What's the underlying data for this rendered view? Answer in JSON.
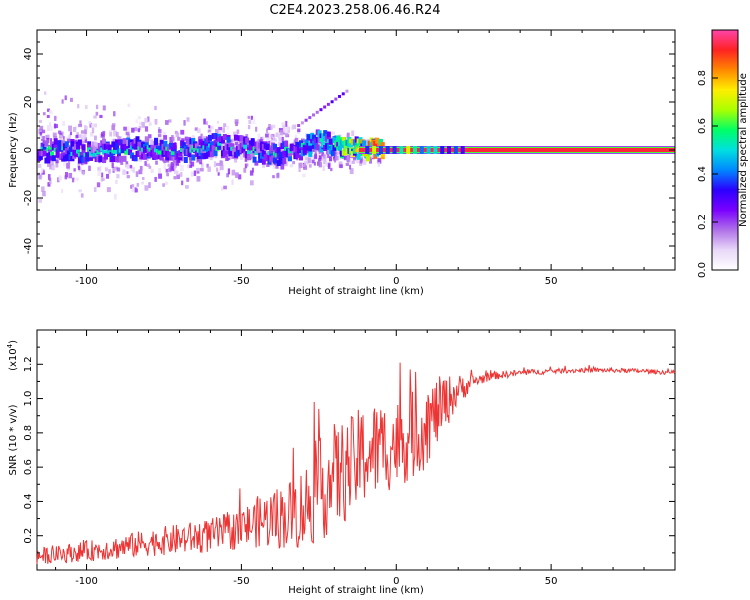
{
  "title": "C2E4.2023.258.06.46.R24",
  "colors": {
    "snr_line": "#ee3333",
    "spectrogram_cmap": [
      "#ffffff",
      "#e8d8f8",
      "#b070e8",
      "#7a00ff",
      "#2b00ff",
      "#0088ff",
      "#00e0e0",
      "#00ff66",
      "#aaff00",
      "#ffee00",
      "#ff8800",
      "#ff2222",
      "#ff44aa"
    ]
  },
  "chart_data": [
    {
      "type": "heatmap",
      "name": "spectrogram",
      "xlabel": "Height of straight line (km)",
      "ylabel": "Frequency (Hz)",
      "xlim": [
        -116,
        90
      ],
      "ylim": [
        -50,
        50
      ],
      "xticks": [
        -100,
        -50,
        0,
        50
      ],
      "xtick_labels": [
        "-100",
        "-50",
        "0",
        "50"
      ],
      "yticks": [
        -40,
        -20,
        0,
        20,
        40
      ],
      "ytick_labels": [
        "-40",
        "-20",
        "0",
        "20",
        "40"
      ],
      "colorbar": {
        "label": "Normalized spectral amplitude",
        "range": [
          0,
          1
        ],
        "ticks": [
          0.0,
          0.2,
          0.4,
          0.6,
          0.8
        ],
        "tick_labels": [
          "0.0",
          "0.2",
          "0.4",
          "0.6",
          "0.8"
        ]
      },
      "ridge": [
        {
          "x": -116,
          "f": -1,
          "a": 0.32
        },
        {
          "x": -110,
          "f": 0,
          "a": 0.35
        },
        {
          "x": -100,
          "f": -1,
          "a": 0.36
        },
        {
          "x": -90,
          "f": 0,
          "a": 0.37
        },
        {
          "x": -80,
          "f": 1,
          "a": 0.38
        },
        {
          "x": -70,
          "f": -1,
          "a": 0.38
        },
        {
          "x": -60,
          "f": 2,
          "a": 0.4
        },
        {
          "x": -50,
          "f": 1,
          "a": 0.38
        },
        {
          "x": -40,
          "f": -2,
          "a": 0.36
        },
        {
          "x": -30,
          "f": 1,
          "a": 0.42
        },
        {
          "x": -25,
          "f": 4,
          "a": 0.45
        },
        {
          "x": -20,
          "f": 2,
          "a": 0.55
        },
        {
          "x": -15,
          "f": 1,
          "a": 0.72
        },
        {
          "x": -10,
          "f": 0,
          "a": 0.82
        },
        {
          "x": -5,
          "f": 0,
          "a": 0.9
        },
        {
          "x": 0,
          "f": 0,
          "a": 0.92
        },
        {
          "x": 20,
          "f": 0,
          "a": 0.95
        },
        {
          "x": 90,
          "f": 0,
          "a": 0.95
        }
      ]
    },
    {
      "type": "line",
      "name": "snr",
      "xlabel": "Height of straight line (km)",
      "ylabel": "SNR (10 * v/v)",
      "yscale_label": "(x10",
      "yscale_exp": "4",
      "yscale_close": ")",
      "xlim": [
        -116,
        90
      ],
      "ylim": [
        0,
        14000
      ],
      "xticks": [
        -100,
        -50,
        0,
        50
      ],
      "xtick_labels": [
        "-100",
        "-50",
        "0",
        "50"
      ],
      "yticks": [
        2000,
        4000,
        6000,
        8000,
        10000,
        12000
      ],
      "ytick_labels": [
        "0.2",
        "0.4",
        "0.6",
        "0.8",
        "1.0",
        "1.2"
      ],
      "series": [
        {
          "name": "SNR",
          "x": [
            -116,
            -110,
            -100,
            -90,
            -80,
            -70,
            -60,
            -50,
            -45,
            -40,
            -35,
            -30,
            -25,
            -20,
            -15,
            -10,
            -5,
            0,
            5,
            8,
            10,
            15,
            20,
            25,
            30,
            40,
            50,
            60,
            70,
            80,
            90
          ],
          "y": [
            800,
            900,
            1100,
            1300,
            1600,
            1800,
            2000,
            2400,
            2800,
            3000,
            3200,
            3600,
            4600,
            5400,
            5900,
            6800,
            7100,
            7400,
            7800,
            8200,
            8500,
            9600,
            10500,
            11000,
            11300,
            11500,
            11600,
            11650,
            11650,
            11600,
            11500
          ],
          "noise": [
            500,
            500,
            600,
            700,
            800,
            900,
            1000,
            1200,
            1500,
            1800,
            2000,
            2500,
            3000,
            3200,
            3000,
            3000,
            2800,
            2600,
            2600,
            2600,
            2400,
            1800,
            900,
            400,
            250,
            180,
            150,
            130,
            130,
            130,
            130
          ]
        }
      ]
    }
  ]
}
